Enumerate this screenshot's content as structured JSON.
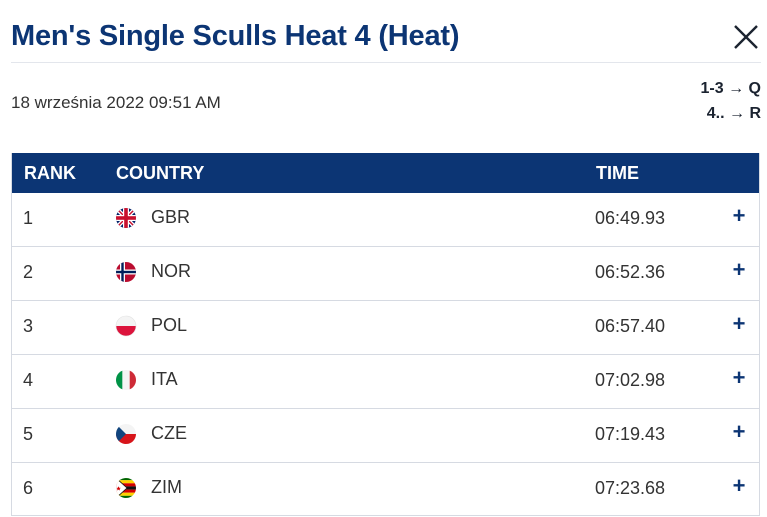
{
  "header": {
    "title": "Men's Single Sculls Heat 4 (Heat)",
    "close_icon": "close-icon"
  },
  "meta": {
    "datetime": "18 września 2022 09:51 AM",
    "qualification": [
      "1-3 → Q",
      "4.. → R"
    ]
  },
  "table": {
    "columns": {
      "rank": "RANK",
      "country": "COUNTRY",
      "time": "TIME"
    },
    "rows": [
      {
        "rank": "1",
        "country": "GBR",
        "flag": "gbr-flag-icon",
        "time": "06:49.93",
        "expand": "+"
      },
      {
        "rank": "2",
        "country": "NOR",
        "flag": "nor-flag-icon",
        "time": "06:52.36",
        "expand": "+"
      },
      {
        "rank": "3",
        "country": "POL",
        "flag": "pol-flag-icon",
        "time": "06:57.40",
        "expand": "+"
      },
      {
        "rank": "4",
        "country": "ITA",
        "flag": "ita-flag-icon",
        "time": "07:02.98",
        "expand": "+"
      },
      {
        "rank": "5",
        "country": "CZE",
        "flag": "cze-flag-icon",
        "time": "07:19.43",
        "expand": "+"
      },
      {
        "rank": "6",
        "country": "ZIM",
        "flag": "zim-flag-icon",
        "time": "07:23.68",
        "expand": "+"
      }
    ]
  },
  "colors": {
    "brand": "#0c3574",
    "border": "#d6dae2"
  }
}
